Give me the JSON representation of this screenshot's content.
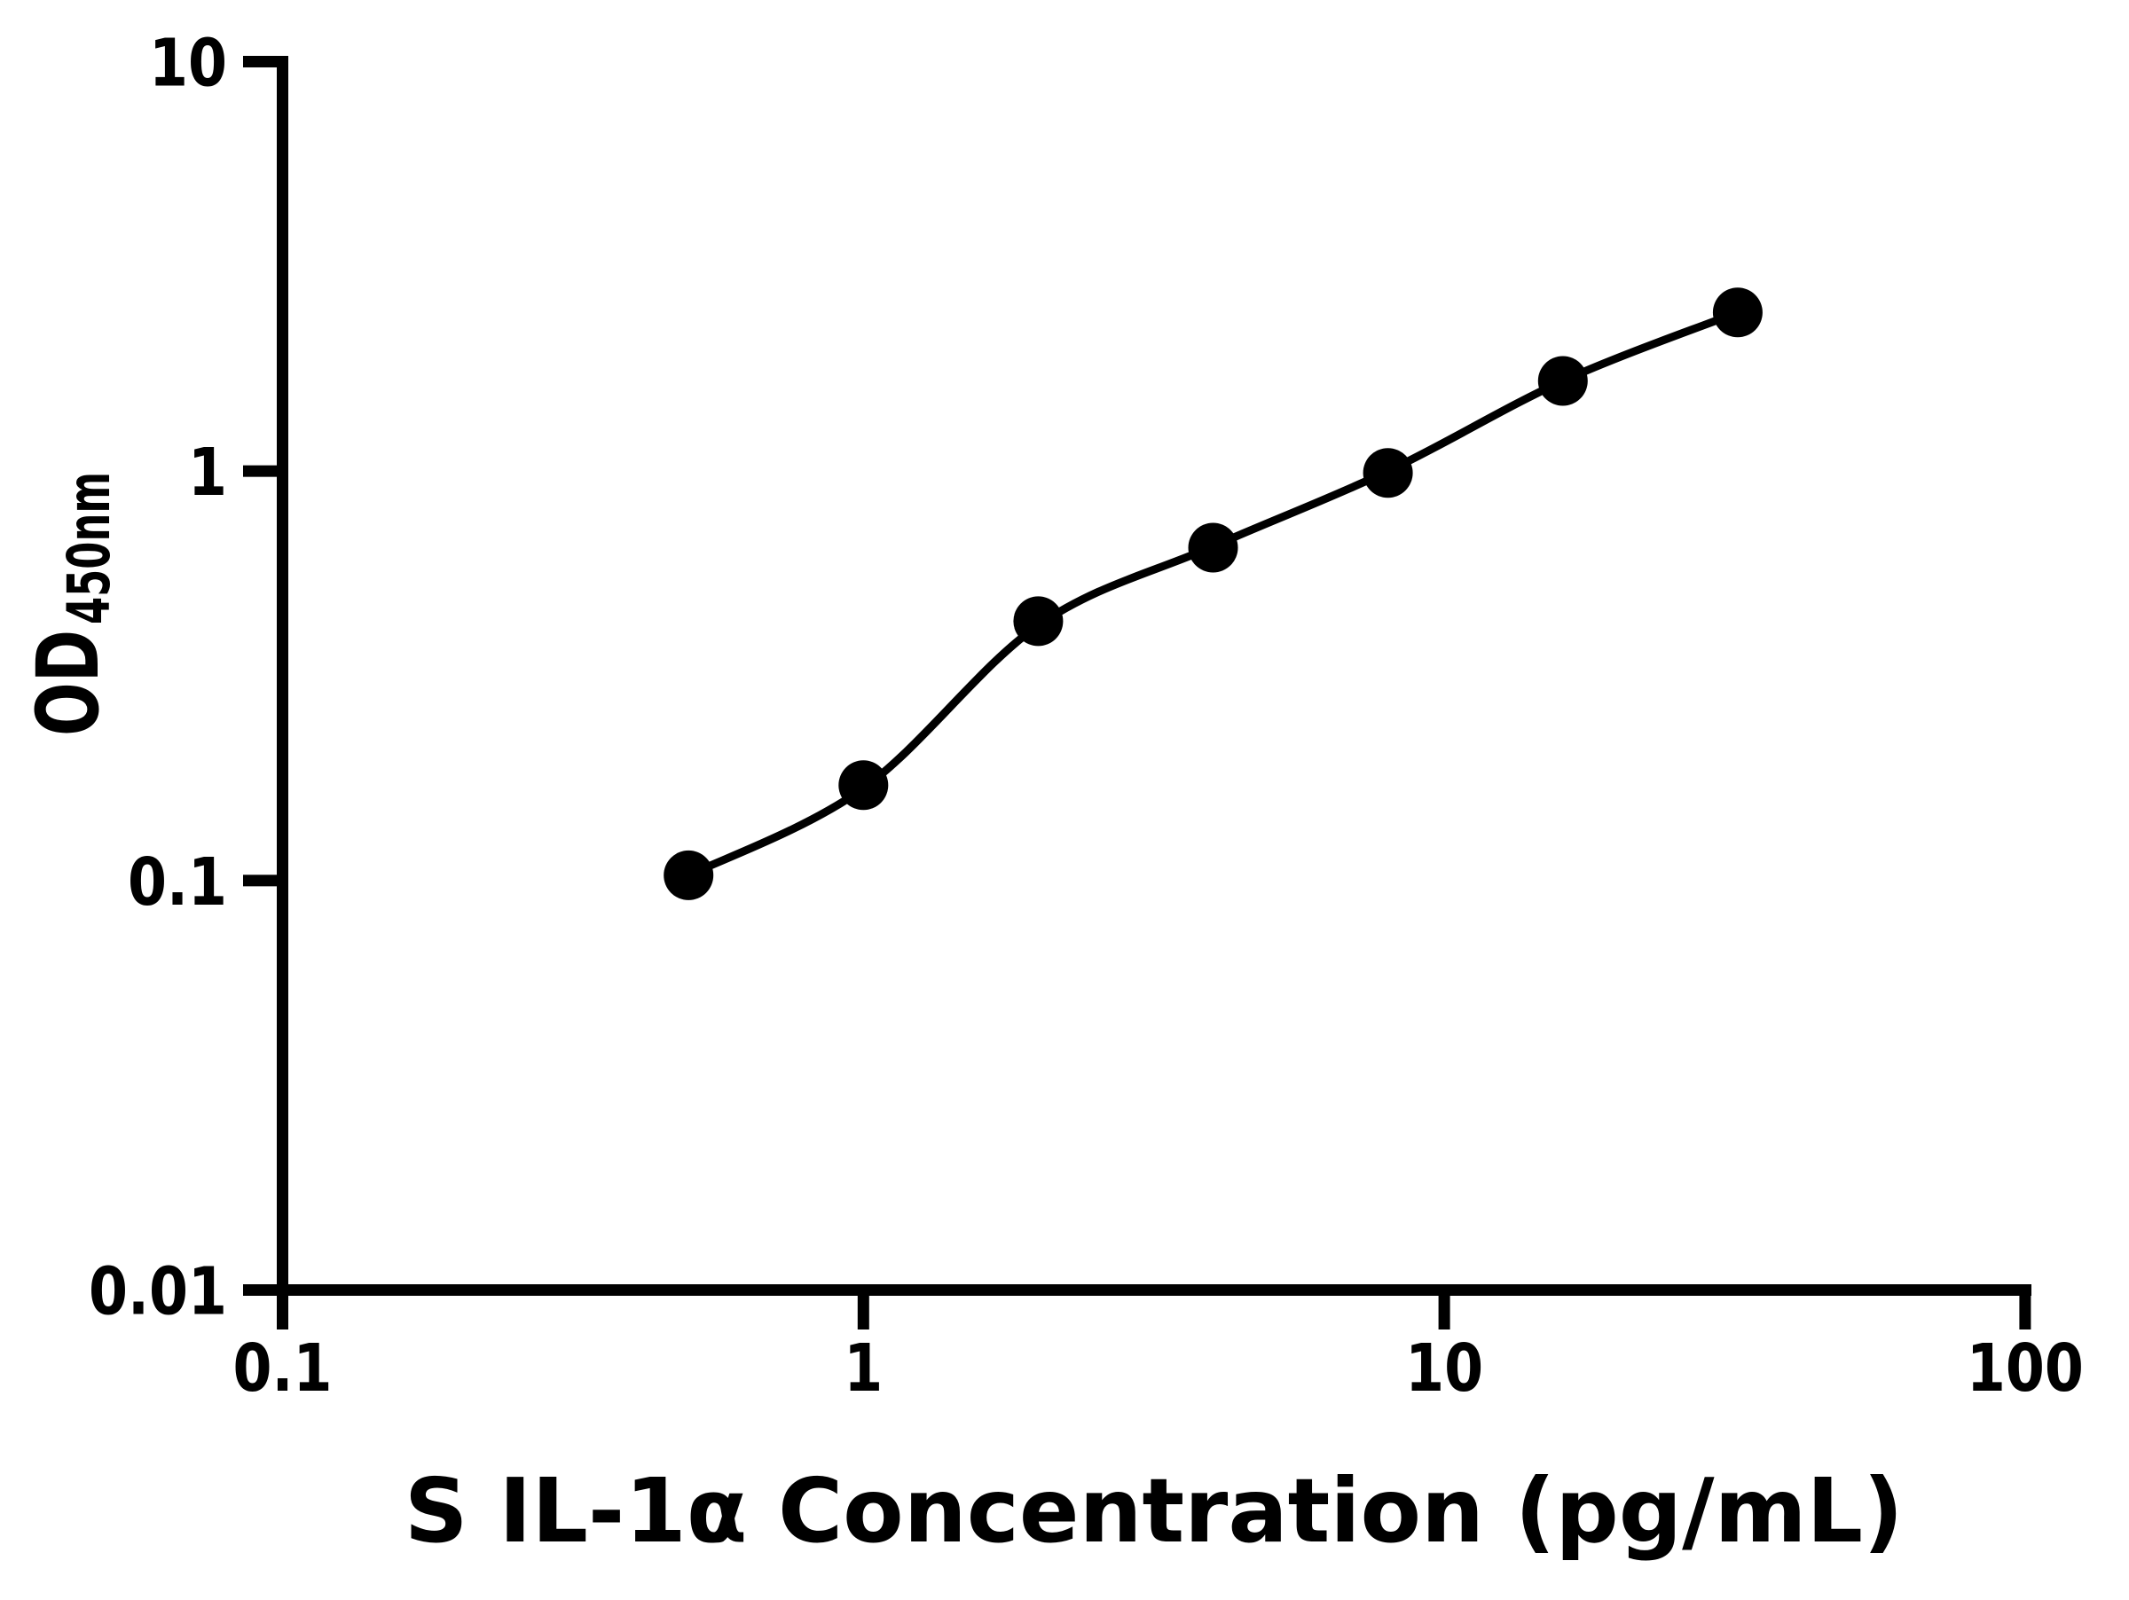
{
  "colors": {
    "ink": "#000000",
    "background": "#ffffff"
  },
  "chart_data": {
    "type": "scatter",
    "title": "",
    "xlabel": "S IL-1α Concentration (pg/mL)",
    "ylabel": {
      "main": "OD",
      "subscript": "450nm"
    },
    "x_scale": "log",
    "y_scale": "log",
    "xlim": [
      0.1,
      100
    ],
    "ylim": [
      0.01,
      10
    ],
    "x_ticks": {
      "values": [
        0.1,
        1,
        10,
        100
      ],
      "labels": [
        "0.1",
        "1",
        "10",
        "100"
      ]
    },
    "y_ticks": {
      "values": [
        10,
        1,
        0.1,
        0.01
      ],
      "labels": [
        "10",
        "1",
        "0.1",
        "0.01"
      ]
    },
    "grid": false,
    "legend": false,
    "marker": {
      "shape": "filled-circle",
      "color": "#000000"
    },
    "line_color": "#000000",
    "series": [
      {
        "name": "standard-curve-points",
        "x": [
          0.5,
          1,
          2,
          4,
          8,
          16,
          32
        ],
        "y": [
          0.103,
          0.171,
          0.43,
          0.65,
          0.99,
          1.66,
          2.44
        ]
      }
    ],
    "fit_curve": {
      "x": [
        0.5,
        1,
        2,
        4,
        8,
        16,
        32
      ],
      "y": [
        0.103,
        0.168,
        0.42,
        0.655,
        1.0,
        1.66,
        2.44
      ]
    }
  }
}
